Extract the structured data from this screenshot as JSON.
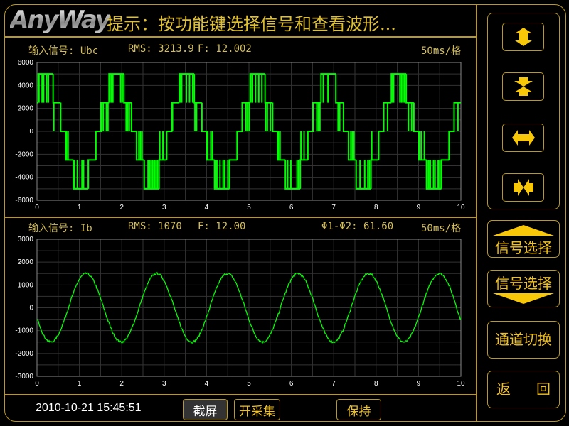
{
  "header": {
    "logo": "AnyWay",
    "hint": "提示：按功能键选择信号和查看波形..."
  },
  "colors": {
    "accent": "#f0c020",
    "border": "#b8982a",
    "trace": "#00ff00",
    "label": "#d2bd5a"
  },
  "channel1": {
    "signal_label": "输入信号: Ubc",
    "rms": "RMS: 3213.9",
    "freq": "F: 12.002",
    "timebase": "50ms/格"
  },
  "channel2": {
    "signal_label": "输入信号: Ib",
    "rms": "RMS: 1070",
    "freq": "F: 12.00",
    "phase": "Φ1-Φ2: 61.60",
    "timebase": "50ms/格"
  },
  "right_panel": {
    "icon_buttons": [
      {
        "icon": "vertical-expand-icon"
      },
      {
        "icon": "vertical-compress-icon"
      },
      {
        "icon": "horizontal-expand-icon"
      },
      {
        "icon": "horizontal-compress-icon"
      }
    ],
    "signal_up": "信号选择",
    "signal_down": "信号选择",
    "channel_switch": "通道切换",
    "back_left": "返",
    "back_right": "回"
  },
  "footer": {
    "timestamp": "2010-10-21 15:45:51",
    "screenshot": "截屏",
    "start_capture": "开采集",
    "hold": "保持"
  },
  "chart_data": [
    {
      "type": "line",
      "name": "",
      "xlim": [
        0,
        10
      ],
      "ylim": [
        -6000,
        6000
      ],
      "xticks": [
        "0",
        "1",
        "2",
        "3",
        "4",
        "5",
        "6",
        "7",
        "8",
        "9",
        "10"
      ],
      "yticks": [
        "6000",
        "4000",
        "2000",
        "0",
        "-2000",
        "-4000",
        "-6000"
      ],
      "grid": true,
      "interpolation": "step",
      "pwm_noise": true,
      "steps": [
        [
          0,
          2500
        ],
        [
          0.03,
          5000
        ],
        [
          0.38,
          2500
        ],
        [
          0.56,
          0
        ],
        [
          0.68,
          -2500
        ],
        [
          0.86,
          -5000
        ],
        [
          1.21,
          -2500
        ],
        [
          1.39,
          0
        ],
        [
          1.51,
          2500
        ],
        [
          1.7,
          5000
        ],
        [
          2.05,
          2500
        ],
        [
          2.23,
          0
        ],
        [
          2.35,
          -2500
        ],
        [
          2.53,
          -5000
        ],
        [
          2.88,
          -2500
        ],
        [
          3.06,
          0
        ],
        [
          3.18,
          2500
        ],
        [
          3.36,
          5000
        ],
        [
          3.71,
          2500
        ],
        [
          3.89,
          0
        ],
        [
          4.01,
          -2500
        ],
        [
          4.19,
          -5000
        ],
        [
          4.54,
          -2500
        ],
        [
          4.72,
          0
        ],
        [
          4.84,
          2500
        ],
        [
          5.03,
          5000
        ],
        [
          5.38,
          2500
        ],
        [
          5.56,
          0
        ],
        [
          5.68,
          -2500
        ],
        [
          5.86,
          -5000
        ],
        [
          6.21,
          -2500
        ],
        [
          6.39,
          0
        ],
        [
          6.51,
          2500
        ],
        [
          6.7,
          5000
        ],
        [
          7.05,
          2500
        ],
        [
          7.23,
          0
        ],
        [
          7.35,
          -2500
        ],
        [
          7.53,
          -5000
        ],
        [
          7.88,
          -2500
        ],
        [
          8.06,
          0
        ],
        [
          8.18,
          2500
        ],
        [
          8.36,
          5000
        ],
        [
          8.71,
          2500
        ],
        [
          8.89,
          0
        ],
        [
          9.01,
          -2500
        ],
        [
          9.19,
          -5000
        ],
        [
          9.54,
          -2500
        ],
        [
          9.72,
          0
        ],
        [
          9.84,
          2500
        ]
      ]
    },
    {
      "type": "line",
      "name": "",
      "xlim": [
        0,
        10
      ],
      "ylim": [
        -3000,
        3000
      ],
      "xticks": [
        "0",
        "1",
        "2",
        "3",
        "4",
        "5",
        "6",
        "7",
        "8",
        "9",
        "10"
      ],
      "yticks": [
        "3000",
        "2000",
        "1000",
        "0",
        "-1000",
        "-2000",
        "-3000"
      ],
      "grid": true,
      "x_start": 0,
      "x_step": 0.16667,
      "values": [
        -513,
        -1244,
        -1499,
        -1182,
        -413,
        513,
        1244,
        1499,
        1182,
        413,
        -513,
        -1244,
        -1499,
        -1182,
        -413,
        513,
        1244,
        1499,
        1182,
        413,
        -513,
        -1244,
        -1499,
        -1182,
        -413,
        513,
        1244,
        1499,
        1182,
        413,
        -513,
        -1244,
        -1499,
        -1182,
        -413,
        513,
        1244,
        1499,
        1182,
        413,
        -513,
        -1244,
        -1499,
        -1182,
        -413,
        513,
        1244,
        1499,
        1182,
        413,
        -513,
        -1244,
        -1499,
        -1182,
        -413,
        513,
        1244,
        1499,
        1182,
        413,
        -513
      ]
    }
  ]
}
